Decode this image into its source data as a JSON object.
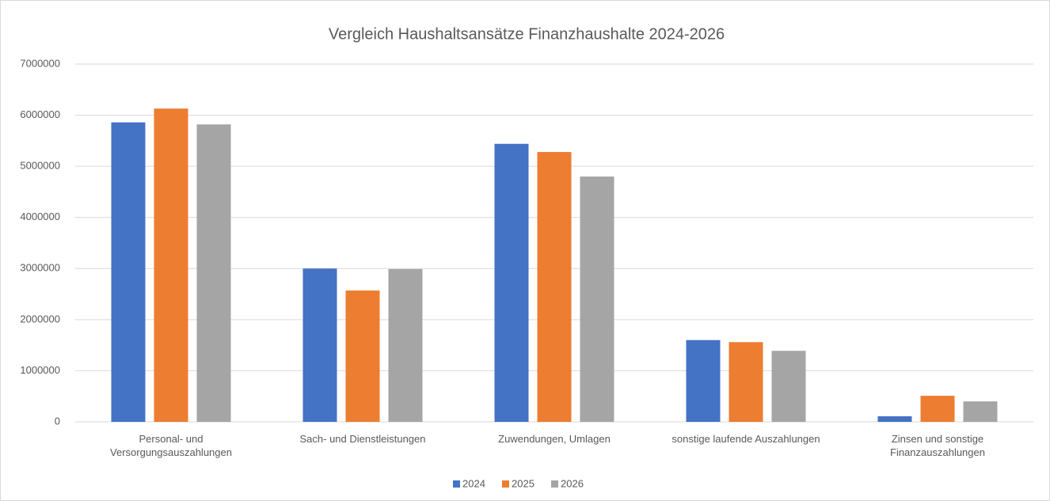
{
  "chart_data": {
    "type": "bar",
    "title": "Vergleich Haushaltsansätze Finanzhaushalte 2024-2026",
    "categories": [
      "Personal- und Versorgungsauszahlungen",
      "Sach- und Dienstleistungen",
      "Zuwendungen, Umlagen",
      "sonstige laufende Auszahlungen",
      "Zinsen und sonstige Finanzauszahlungen"
    ],
    "series": [
      {
        "name": "2024",
        "color": "#4472c4",
        "values": [
          5860000,
          3000000,
          5440000,
          1600000,
          110000
        ]
      },
      {
        "name": "2025",
        "color": "#ed7d31",
        "values": [
          6130000,
          2570000,
          5280000,
          1560000,
          510000
        ]
      },
      {
        "name": "2026",
        "color": "#a5a5a5",
        "values": [
          5820000,
          2990000,
          4800000,
          1390000,
          400000
        ]
      }
    ],
    "ylim": [
      0,
      7000000
    ],
    "yticks": [
      0,
      1000000,
      2000000,
      3000000,
      4000000,
      5000000,
      6000000,
      7000000
    ],
    "grid": true,
    "legend": "bottom"
  }
}
